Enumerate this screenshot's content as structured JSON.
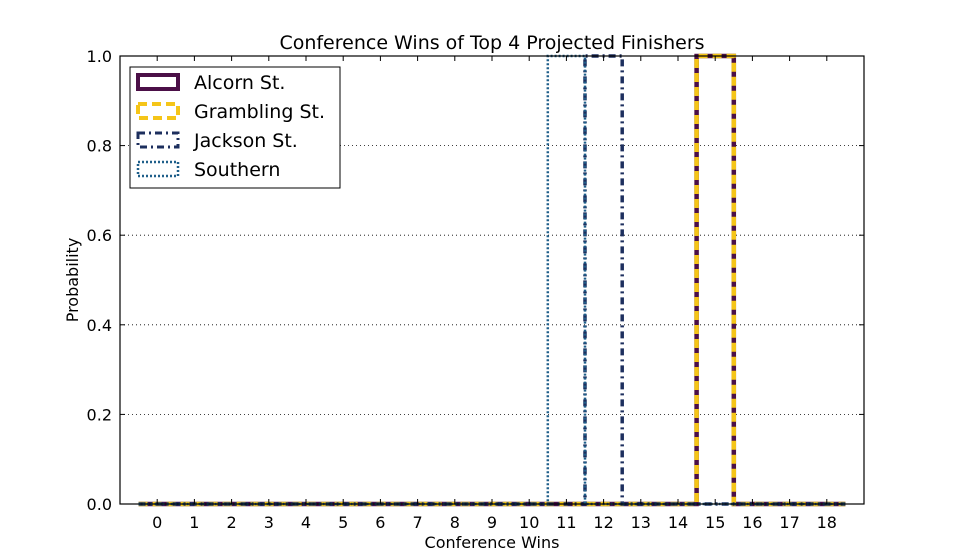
{
  "chart_data": {
    "type": "step",
    "title": "Conference Wins of Top 4 Projected Finishers",
    "xlabel": "Conference Wins",
    "ylabel": "Probability",
    "x_ticks": [
      0,
      1,
      2,
      3,
      4,
      5,
      6,
      7,
      8,
      9,
      10,
      11,
      12,
      13,
      14,
      15,
      16,
      17,
      18
    ],
    "y_ticks": [
      "0.0",
      "0.2",
      "0.4",
      "0.6",
      "0.8",
      "1.0"
    ],
    "xlim": [
      -1,
      19
    ],
    "ylim": [
      0,
      1
    ],
    "grid": "horizontal-dotted",
    "legend_position": "top-left",
    "series": [
      {
        "name": "Alcorn St.",
        "color": "#4b0f47",
        "style": "solid",
        "values": [
          0,
          0,
          0,
          0,
          0,
          0,
          0,
          0,
          0,
          0,
          0,
          0,
          0,
          0,
          0,
          1,
          0,
          0,
          0
        ]
      },
      {
        "name": "Grambling St.",
        "color": "#f5c518",
        "style": "dashed",
        "values": [
          0,
          0,
          0,
          0,
          0,
          0,
          0,
          0,
          0,
          0,
          0,
          0,
          0,
          0,
          0,
          1,
          0,
          0,
          0
        ]
      },
      {
        "name": "Jackson St.",
        "color": "#1d2f5e",
        "style": "dashdot",
        "values": [
          0,
          0,
          0,
          0,
          0,
          0,
          0,
          0,
          0,
          0,
          0,
          0,
          1,
          0,
          0,
          0,
          0,
          0,
          0
        ]
      },
      {
        "name": "Southern",
        "color": "#1f5f8a",
        "style": "dotted",
        "values": [
          0,
          0,
          0,
          0,
          0,
          0,
          0,
          0,
          0,
          0,
          0,
          1,
          0,
          0,
          0,
          0,
          0,
          0,
          0
        ]
      }
    ]
  }
}
